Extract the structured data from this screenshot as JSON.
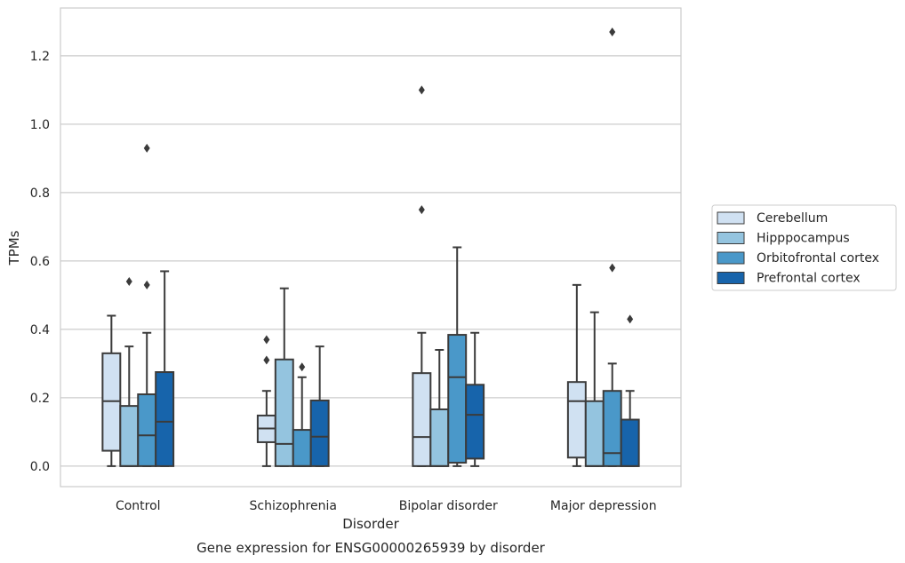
{
  "chart_data": {
    "type": "box",
    "title": "",
    "caption": "Gene expression for ENSG00000265939 by disorder",
    "xlabel": "Disorder",
    "ylabel": "TPMs",
    "ylim": [
      -0.06,
      1.34
    ],
    "yticks": [
      "0.0",
      "0.2",
      "0.4",
      "0.6",
      "0.8",
      "1.0",
      "1.2"
    ],
    "grid": "horizontal",
    "legend_position": "right",
    "categories": [
      "Control",
      "Schizophrenia",
      "Bipolar disorder",
      "Major depression"
    ],
    "series": [
      {
        "name": "Cerebellum",
        "color": "#d0e1f2",
        "boxes": [
          {
            "whislo": 0.0,
            "q1": 0.045,
            "med": 0.19,
            "q3": 0.33,
            "whishi": 0.44,
            "fliers": []
          },
          {
            "whislo": 0.0,
            "q1": 0.07,
            "med": 0.11,
            "q3": 0.148,
            "whishi": 0.22,
            "fliers": [
              0.31,
              0.37
            ]
          },
          {
            "whislo": 0.0,
            "q1": 0.0,
            "med": 0.085,
            "q3": 0.272,
            "whishi": 0.39,
            "fliers": [
              0.75,
              1.1
            ]
          },
          {
            "whislo": 0.0,
            "q1": 0.025,
            "med": 0.19,
            "q3": 0.246,
            "whishi": 0.53,
            "fliers": []
          }
        ]
      },
      {
        "name": "Hipppocampus",
        "color": "#94c4df",
        "boxes": [
          {
            "whislo": 0.0,
            "q1": 0.0,
            "med": 0.0,
            "q3": 0.176,
            "whishi": 0.35,
            "fliers": [
              0.54
            ]
          },
          {
            "whislo": 0.0,
            "q1": 0.0,
            "med": 0.065,
            "q3": 0.312,
            "whishi": 0.52,
            "fliers": []
          },
          {
            "whislo": 0.0,
            "q1": 0.0,
            "med": 0.0,
            "q3": 0.166,
            "whishi": 0.34,
            "fliers": []
          },
          {
            "whislo": 0.0,
            "q1": 0.0,
            "med": 0.0,
            "q3": 0.19,
            "whishi": 0.45,
            "fliers": []
          }
        ]
      },
      {
        "name": "Orbitofrontal cortex",
        "color": "#4a98c9",
        "boxes": [
          {
            "whislo": 0.0,
            "q1": 0.0,
            "med": 0.09,
            "q3": 0.21,
            "whishi": 0.39,
            "fliers": [
              0.53,
              0.93
            ]
          },
          {
            "whislo": 0.0,
            "q1": 0.0,
            "med": 0.0,
            "q3": 0.106,
            "whishi": 0.26,
            "fliers": [
              0.29
            ]
          },
          {
            "whislo": 0.0,
            "q1": 0.01,
            "med": 0.26,
            "q3": 0.384,
            "whishi": 0.64,
            "fliers": []
          },
          {
            "whislo": 0.0,
            "q1": 0.0,
            "med": 0.038,
            "q3": 0.22,
            "whishi": 0.3,
            "fliers": [
              0.58,
              1.27
            ]
          }
        ]
      },
      {
        "name": "Prefrontal cortex",
        "color": "#1764ab",
        "boxes": [
          {
            "whislo": 0.0,
            "q1": 0.0,
            "med": 0.13,
            "q3": 0.275,
            "whishi": 0.57,
            "fliers": []
          },
          {
            "whislo": 0.0,
            "q1": 0.0,
            "med": 0.086,
            "q3": 0.192,
            "whishi": 0.35,
            "fliers": []
          },
          {
            "whislo": 0.0,
            "q1": 0.022,
            "med": 0.15,
            "q3": 0.238,
            "whishi": 0.39,
            "fliers": []
          },
          {
            "whislo": 0.0,
            "q1": 0.0,
            "med": 0.0,
            "q3": 0.136,
            "whishi": 0.22,
            "fliers": [
              0.43
            ]
          }
        ]
      }
    ]
  }
}
